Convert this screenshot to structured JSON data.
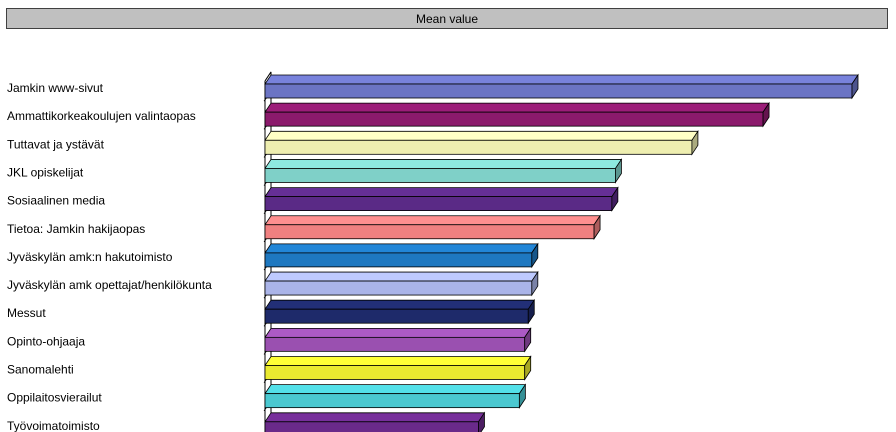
{
  "header": {
    "title": "Mean value"
  },
  "chart_data": {
    "type": "bar",
    "orientation": "horizontal",
    "style": "3d",
    "title": "Mean value",
    "xlabel": "",
    "ylabel": "",
    "xlim": [
      0,
      3.3
    ],
    "grid": false,
    "legend": "none",
    "categories": [
      "Jamkin www-sivut",
      "Ammattikorkeakoulujen valintaopas",
      "Tuttavat ja ystävät",
      "JKL opiskelijat",
      "Sosiaalinen media",
      "Tietoa: Jamkin hakijaopas",
      "Jyväskylän amk:n hakutoimisto",
      "Jyväskylän amk opettajat/henkilökunta",
      "Messut",
      "Opinto-ohjaaja",
      "Sanomalehti",
      "Oppilaitosvierailut",
      "Työvoimatoimisto"
    ],
    "values": [
      3.3,
      2.8,
      2.4,
      1.97,
      1.95,
      1.85,
      1.5,
      1.5,
      1.48,
      1.46,
      1.46,
      1.43,
      1.2
    ],
    "colors": [
      "#6b74c4",
      "#8b1a6c",
      "#eeeeb0",
      "#7fd0c8",
      "#5a2a86",
      "#f08080",
      "#1e78c0",
      "#aab4e8",
      "#1e2a6a",
      "#9a50b0",
      "#eaea30",
      "#4ac8d0",
      "#6a2a8a"
    ]
  }
}
